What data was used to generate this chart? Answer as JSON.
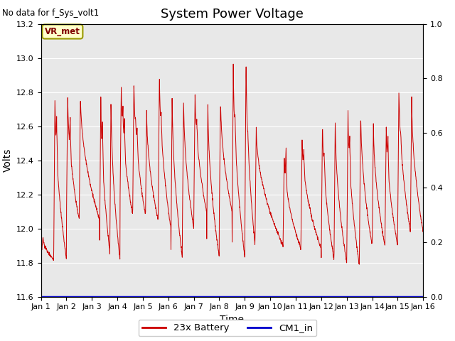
{
  "title": "System Power Voltage",
  "top_left_text": "No data for f_Sys_volt1",
  "xlabel": "Time",
  "ylabel": "Volts",
  "ylim_left": [
    11.6,
    13.2
  ],
  "ylim_right": [
    0.0,
    1.0
  ],
  "yticks_left": [
    11.6,
    11.8,
    12.0,
    12.2,
    12.4,
    12.6,
    12.8,
    13.0,
    13.2
  ],
  "yticks_right": [
    0.0,
    0.2,
    0.4,
    0.6,
    0.8,
    1.0
  ],
  "n_days": 15,
  "xtick_labels": [
    "Jan 1",
    "Jan 2",
    "Jan 3",
    "Jan 4",
    "Jan 5",
    "Jan 6",
    "Jan 7",
    "Jan 8",
    "Jan 9",
    "Jan 10",
    "Jan 11",
    "Jan 12",
    "Jan 13",
    "Jan 14",
    "Jan 15",
    "Jan 16"
  ],
  "legend_items": [
    {
      "label": "23x Battery",
      "color": "#cc0000"
    },
    {
      "label": "CM1_in",
      "color": "#0000cc"
    }
  ],
  "annotation_text": "VR_met",
  "background_color": "#e8e8e8",
  "figure_bg": "#ffffff",
  "grid_color": "#ffffff",
  "title_fontsize": 13,
  "axis_label_fontsize": 10,
  "tick_fontsize": 8,
  "cycles": [
    {
      "s": 0.0,
      "pc": 0.08,
      "e": 0.5,
      "pv": 11.95,
      "mv": 11.82,
      "spikes": []
    },
    {
      "s": 0.5,
      "pc": 0.55,
      "e": 1.0,
      "pv": 12.8,
      "mv": 11.82,
      "spikes": [
        {
          "t": 0.62,
          "v": 12.75
        }
      ]
    },
    {
      "s": 1.0,
      "pc": 1.05,
      "e": 1.5,
      "pv": 12.8,
      "mv": 12.05,
      "spikes": [
        {
          "t": 1.15,
          "v": 12.72
        }
      ]
    },
    {
      "s": 1.5,
      "pc": 1.55,
      "e": 2.3,
      "pv": 12.8,
      "mv": 12.05,
      "spikes": []
    },
    {
      "s": 2.3,
      "pc": 2.35,
      "e": 2.7,
      "pv": 12.8,
      "mv": 11.87,
      "spikes": [
        {
          "t": 2.42,
          "v": 12.71
        }
      ]
    },
    {
      "s": 2.7,
      "pc": 2.75,
      "e": 3.1,
      "pv": 12.8,
      "mv": 11.82,
      "spikes": []
    },
    {
      "s": 3.1,
      "pc": 3.15,
      "e": 3.6,
      "pv": 12.87,
      "mv": 12.08,
      "spikes": [
        {
          "t": 3.22,
          "v": 12.76
        },
        {
          "t": 3.28,
          "v": 12.7
        }
      ]
    },
    {
      "s": 3.6,
      "pc": 3.65,
      "e": 4.1,
      "pv": 12.88,
      "mv": 12.08,
      "spikes": [
        {
          "t": 3.72,
          "v": 12.67
        },
        {
          "t": 3.78,
          "v": 12.65
        }
      ]
    },
    {
      "s": 4.1,
      "pc": 4.15,
      "e": 4.6,
      "pv": 12.7,
      "mv": 12.05,
      "spikes": []
    },
    {
      "s": 4.6,
      "pc": 4.65,
      "e": 5.1,
      "pv": 12.94,
      "mv": 12.0,
      "spikes": [
        {
          "t": 4.72,
          "v": 12.71
        }
      ]
    },
    {
      "s": 5.1,
      "pc": 5.15,
      "e": 5.55,
      "pv": 12.8,
      "mv": 11.83,
      "spikes": []
    },
    {
      "s": 5.55,
      "pc": 5.6,
      "e": 6.0,
      "pv": 12.77,
      "mv": 12.0,
      "spikes": []
    },
    {
      "s": 6.0,
      "pc": 6.05,
      "e": 6.5,
      "pv": 12.81,
      "mv": 12.1,
      "spikes": [
        {
          "t": 6.12,
          "v": 12.67
        }
      ]
    },
    {
      "s": 6.5,
      "pc": 6.55,
      "e": 7.0,
      "pv": 12.77,
      "mv": 11.83,
      "spikes": []
    },
    {
      "s": 7.0,
      "pc": 7.05,
      "e": 7.5,
      "pv": 12.77,
      "mv": 12.1,
      "spikes": []
    },
    {
      "s": 7.5,
      "pc": 7.55,
      "e": 8.0,
      "pv": 12.99,
      "mv": 11.83,
      "spikes": [
        {
          "t": 7.62,
          "v": 12.72
        }
      ]
    },
    {
      "s": 8.0,
      "pc": 8.05,
      "e": 8.4,
      "pv": 13.03,
      "mv": 11.9,
      "spikes": [
        {
          "t": 8.12,
          "v": 12.58
        }
      ]
    },
    {
      "s": 8.4,
      "pc": 8.45,
      "e": 9.5,
      "pv": 12.6,
      "mv": 11.9,
      "spikes": []
    },
    {
      "s": 9.5,
      "pc": 9.55,
      "e": 10.2,
      "pv": 12.45,
      "mv": 11.88,
      "spikes": [
        {
          "t": 9.62,
          "v": 12.52
        }
      ]
    },
    {
      "s": 10.2,
      "pc": 10.25,
      "e": 11.0,
      "pv": 12.53,
      "mv": 11.88,
      "spikes": [
        {
          "t": 10.32,
          "v": 12.5
        }
      ]
    },
    {
      "s": 11.0,
      "pc": 11.05,
      "e": 11.5,
      "pv": 12.65,
      "mv": 11.82,
      "spikes": [
        {
          "t": 11.12,
          "v": 12.5
        }
      ]
    },
    {
      "s": 11.5,
      "pc": 11.55,
      "e": 12.0,
      "pv": 12.65,
      "mv": 11.8,
      "spikes": []
    },
    {
      "s": 12.0,
      "pc": 12.05,
      "e": 12.5,
      "pv": 12.73,
      "mv": 11.78,
      "spikes": [
        {
          "t": 12.12,
          "v": 12.6
        }
      ]
    },
    {
      "s": 12.5,
      "pc": 12.55,
      "e": 13.0,
      "pv": 12.7,
      "mv": 11.9,
      "spikes": []
    },
    {
      "s": 13.0,
      "pc": 13.05,
      "e": 13.5,
      "pv": 12.63,
      "mv": 11.9,
      "spikes": []
    },
    {
      "s": 13.5,
      "pc": 13.55,
      "e": 14.0,
      "pv": 12.65,
      "mv": 11.9,
      "spikes": [
        {
          "t": 13.62,
          "v": 12.6
        }
      ]
    },
    {
      "s": 14.0,
      "pc": 14.05,
      "e": 14.5,
      "pv": 12.85,
      "mv": 11.98,
      "spikes": [
        {
          "t": 14.12,
          "v": 12.59
        }
      ]
    },
    {
      "s": 14.5,
      "pc": 14.55,
      "e": 15.0,
      "pv": 12.78,
      "mv": 11.98,
      "spikes": []
    }
  ]
}
